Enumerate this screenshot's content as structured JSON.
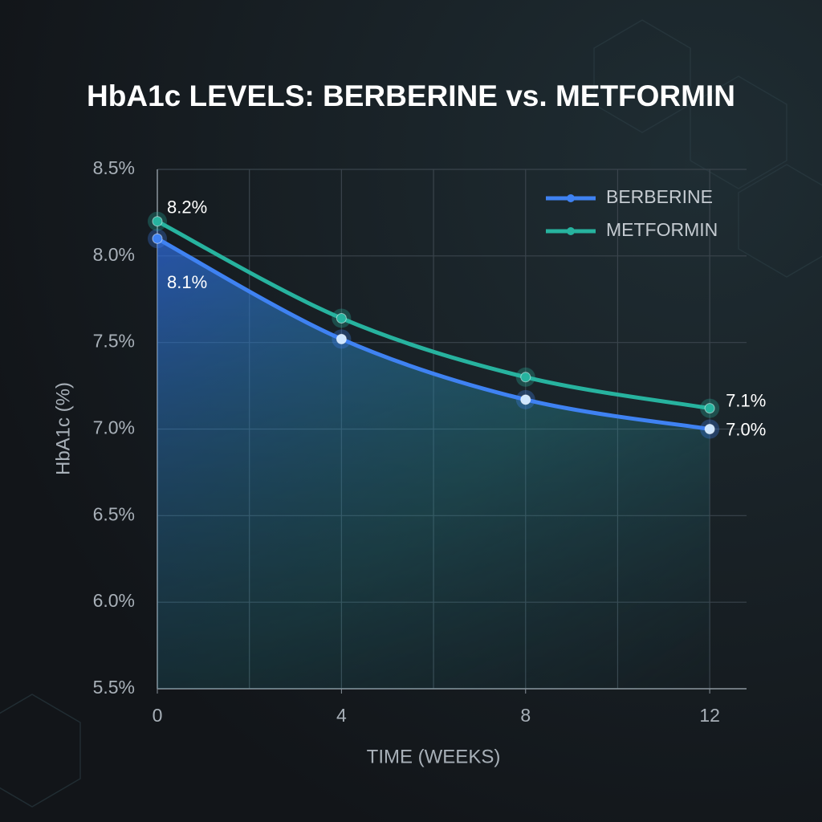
{
  "chart_data": {
    "type": "line",
    "title": "HbA1c LEVELS: BERBERINE vs. METFORMIN",
    "x_label": "TIME (WEEKS)",
    "y_label": "HbA1c (%)",
    "x": [
      0,
      4,
      8,
      12
    ],
    "series": [
      {
        "name": "BERBERINE",
        "color": "#3f82f2",
        "values": [
          8.1,
          7.52,
          7.17,
          7.0
        ],
        "value_labels": [
          "8.1%",
          null,
          null,
          "7.0%"
        ]
      },
      {
        "name": "METFORMIN",
        "color": "#27b39f",
        "values": [
          8.2,
          7.64,
          7.3,
          7.12
        ],
        "value_labels": [
          "8.2%",
          null,
          null,
          "7.1%"
        ]
      }
    ],
    "xlim": [
      0,
      12.8
    ],
    "xticks": [
      0,
      4,
      8,
      12
    ],
    "xgridlines": [
      0,
      2,
      4,
      6,
      8,
      10,
      12
    ],
    "ylim": [
      5.5,
      8.5
    ],
    "yticks": [
      {
        "value": 5.5,
        "label": "5.5%"
      },
      {
        "value": 6.0,
        "label": "6.0%"
      },
      {
        "value": 6.5,
        "label": "6.5%"
      },
      {
        "value": 7.0,
        "label": "7.0%"
      },
      {
        "value": 7.5,
        "label": "7.5%"
      },
      {
        "value": 8.0,
        "label": "8.0%"
      },
      {
        "value": 8.5,
        "label": "8.5%"
      }
    ],
    "grid": true,
    "legend": "top-right"
  }
}
